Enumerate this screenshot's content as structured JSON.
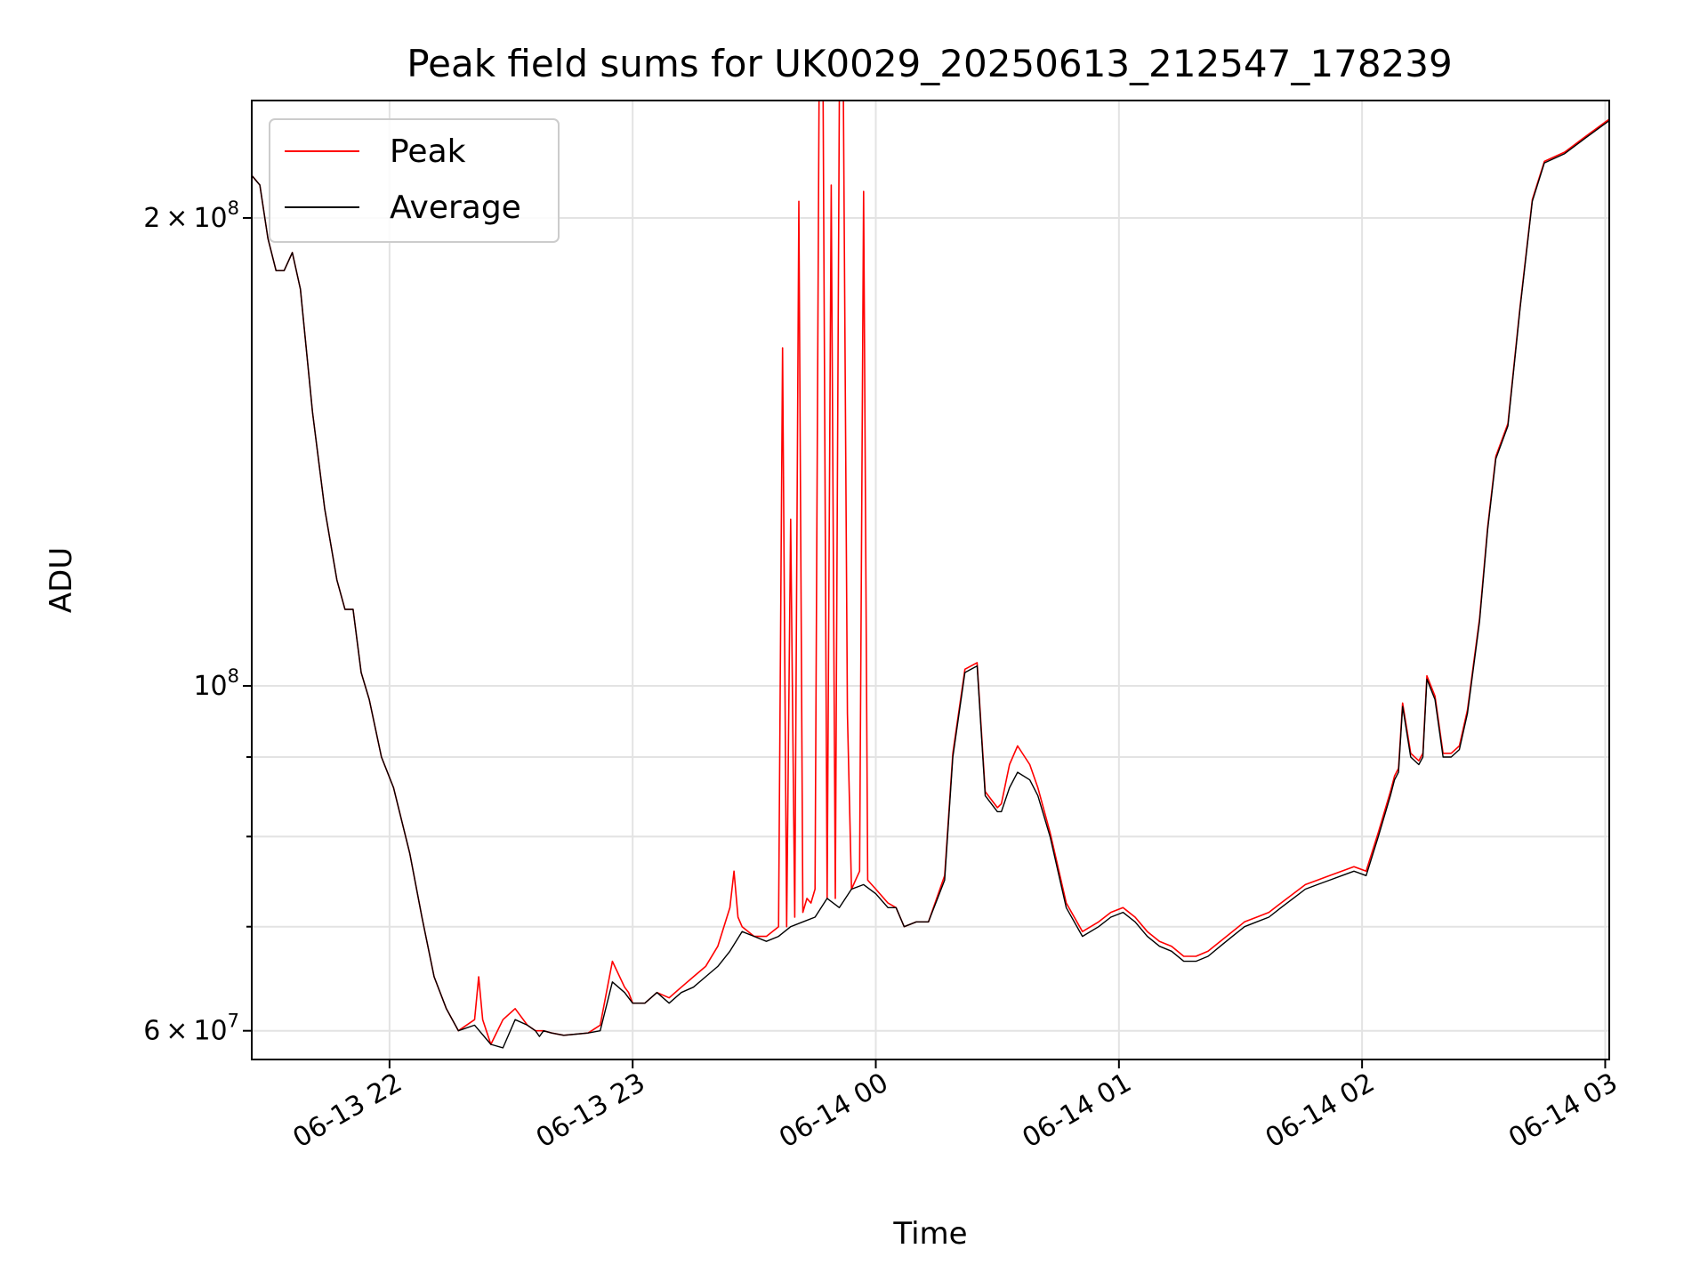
{
  "chart_data": {
    "type": "line",
    "title": "Peak field sums for UK0029_20250613_212547_178239",
    "xlabel": "Time",
    "ylabel": "ADU",
    "y_scale": "log",
    "grid": true,
    "legend_position": "upper-left",
    "x_range": [
      "2025-06-13 21:26",
      "2025-06-14 03:01"
    ],
    "ylim": [
      57500000,
      238000000
    ],
    "x_ticks": [
      {
        "x": "2025-06-13 22:00",
        "label": "06-13 22"
      },
      {
        "x": "2025-06-13 23:00",
        "label": "06-13 23"
      },
      {
        "x": "2025-06-14 00:00",
        "label": "06-14 00"
      },
      {
        "x": "2025-06-14 01:00",
        "label": "06-14 01"
      },
      {
        "x": "2025-06-14 02:00",
        "label": "06-14 02"
      },
      {
        "x": "2025-06-14 03:00",
        "label": "06-14 03"
      }
    ],
    "y_major_ticks": [
      {
        "y": 60000000,
        "label_base": "6",
        "label_exp": "7"
      },
      {
        "y": 100000000,
        "label_base": "",
        "label_exp": "8"
      },
      {
        "y": 200000000,
        "label_base": "2",
        "label_exp": "8"
      }
    ],
    "y_minor_ticks": [
      70000000,
      80000000,
      90000000
    ],
    "series": [
      {
        "name": "Average",
        "color": "#000000",
        "x": [
          "2025-06-13 21:26",
          "2025-06-13 21:28",
          "2025-06-13 21:30",
          "2025-06-13 21:32",
          "2025-06-13 21:34",
          "2025-06-13 21:36",
          "2025-06-13 21:38",
          "2025-06-13 21:41",
          "2025-06-13 21:44",
          "2025-06-13 21:47",
          "2025-06-13 21:49",
          "2025-06-13 21:51",
          "2025-06-13 21:53",
          "2025-06-13 21:55",
          "2025-06-13 21:58",
          "2025-06-13 22:01",
          "2025-06-13 22:05",
          "2025-06-13 22:08",
          "2025-06-13 22:11",
          "2025-06-13 22:14",
          "2025-06-13 22:17",
          "2025-06-13 22:21",
          "2025-06-13 22:25",
          "2025-06-13 22:28",
          "2025-06-13 22:31",
          "2025-06-13 22:34",
          "2025-06-13 22:36",
          "2025-06-13 22:37",
          "2025-06-13 22:38",
          "2025-06-13 22:40",
          "2025-06-13 22:43",
          "2025-06-13 22:46",
          "2025-06-13 22:49",
          "2025-06-13 22:52",
          "2025-06-13 22:55",
          "2025-06-13 22:58",
          "2025-06-13 22:59",
          "2025-06-13 23:00",
          "2025-06-13 23:03",
          "2025-06-13 23:06",
          "2025-06-13 23:09",
          "2025-06-13 23:12",
          "2025-06-13 23:15",
          "2025-06-13 23:18",
          "2025-06-13 23:21",
          "2025-06-13 23:24",
          "2025-06-13 23:27",
          "2025-06-13 23:30",
          "2025-06-13 23:33",
          "2025-06-13 23:36",
          "2025-06-13 23:39",
          "2025-06-13 23:42",
          "2025-06-13 23:45",
          "2025-06-13 23:48",
          "2025-06-13 23:51",
          "2025-06-13 23:54",
          "2025-06-13 23:57",
          "2025-06-14 00:00",
          "2025-06-14 00:03",
          "2025-06-14 00:05",
          "2025-06-14 00:07",
          "2025-06-14 00:10",
          "2025-06-14 00:13",
          "2025-06-14 00:17",
          "2025-06-14 00:19",
          "2025-06-14 00:22",
          "2025-06-14 00:25",
          "2025-06-14 00:27",
          "2025-06-14 00:30",
          "2025-06-14 00:31",
          "2025-06-14 00:33",
          "2025-06-14 00:35",
          "2025-06-14 00:38",
          "2025-06-14 00:40",
          "2025-06-14 00:43",
          "2025-06-14 00:47",
          "2025-06-14 00:51",
          "2025-06-14 00:55",
          "2025-06-14 00:58",
          "2025-06-14 01:01",
          "2025-06-14 01:04",
          "2025-06-14 01:07",
          "2025-06-14 01:10",
          "2025-06-14 01:13",
          "2025-06-14 01:16",
          "2025-06-14 01:19",
          "2025-06-14 01:22",
          "2025-06-14 01:25",
          "2025-06-14 01:28",
          "2025-06-14 01:31",
          "2025-06-14 01:34",
          "2025-06-14 01:37",
          "2025-06-14 01:40",
          "2025-06-14 01:43",
          "2025-06-14 01:46",
          "2025-06-14 01:49",
          "2025-06-14 01:52",
          "2025-06-14 01:55",
          "2025-06-14 01:58",
          "2025-06-14 02:01",
          "2025-06-14 02:04",
          "2025-06-14 02:07",
          "2025-06-14 02:08",
          "2025-06-14 02:09",
          "2025-06-14 02:10",
          "2025-06-14 02:12",
          "2025-06-14 02:14",
          "2025-06-14 02:15",
          "2025-06-14 02:16",
          "2025-06-14 02:18",
          "2025-06-14 02:20",
          "2025-06-14 02:22",
          "2025-06-14 02:24",
          "2025-06-14 02:26",
          "2025-06-14 02:29",
          "2025-06-14 02:31",
          "2025-06-14 02:33",
          "2025-06-14 02:36",
          "2025-06-14 02:39",
          "2025-06-14 02:42",
          "2025-06-14 02:45",
          "2025-06-14 02:50",
          "2025-06-14 02:55",
          "2025-06-14 03:00",
          "2025-06-14 03:01"
        ],
        "values": [
          213000000,
          210000000,
          194000000,
          185000000,
          185000000,
          190000000,
          180000000,
          150000000,
          130000000,
          117000000,
          112000000,
          112000000,
          102000000,
          98000000,
          90000000,
          86000000,
          78000000,
          71000000,
          65000000,
          62000000,
          60000000,
          60500000,
          58800000,
          58500000,
          61000000,
          60500000,
          60000000,
          59500000,
          60000000,
          59800000,
          59600000,
          59700000,
          59800000,
          60000000,
          64500000,
          63500000,
          63000000,
          62500000,
          62500000,
          63500000,
          62500000,
          63500000,
          64000000,
          65000000,
          66000000,
          67500000,
          69500000,
          69000000,
          68500000,
          69000000,
          70000000,
          70500000,
          71000000,
          73000000,
          72000000,
          74000000,
          74500000,
          73500000,
          72000000,
          72000000,
          70000000,
          70500000,
          70500000,
          75000000,
          90000000,
          102000000,
          103000000,
          85000000,
          83000000,
          83000000,
          86000000,
          88000000,
          87000000,
          85000000,
          80000000,
          72000000,
          69000000,
          70000000,
          71000000,
          71500000,
          70500000,
          69000000,
          68000000,
          67500000,
          66500000,
          66500000,
          67000000,
          68000000,
          69000000,
          70000000,
          70500000,
          71000000,
          72000000,
          73000000,
          74000000,
          74500000,
          75000000,
          75500000,
          76000000,
          75500000,
          80000000,
          85000000,
          87000000,
          88000000,
          97000000,
          90000000,
          89000000,
          90000000,
          101000000,
          98000000,
          90000000,
          90000000,
          91000000,
          96000000,
          110000000,
          126000000,
          140000000,
          147000000,
          175000000,
          205000000,
          217000000,
          220000000,
          225000000,
          230000000,
          231000000
        ]
      },
      {
        "name": "Peak",
        "color": "#ff0000",
        "x": [
          "2025-06-13 21:26",
          "2025-06-13 21:28",
          "2025-06-13 21:30",
          "2025-06-13 21:32",
          "2025-06-13 21:34",
          "2025-06-13 21:36",
          "2025-06-13 21:38",
          "2025-06-13 21:41",
          "2025-06-13 21:44",
          "2025-06-13 21:47",
          "2025-06-13 21:49",
          "2025-06-13 21:51",
          "2025-06-13 21:53",
          "2025-06-13 21:55",
          "2025-06-13 21:58",
          "2025-06-13 22:01",
          "2025-06-13 22:05",
          "2025-06-13 22:08",
          "2025-06-13 22:11",
          "2025-06-13 22:14",
          "2025-06-13 22:17",
          "2025-06-13 22:21",
          "2025-06-13 22:22",
          "2025-06-13 22:23",
          "2025-06-13 22:25",
          "2025-06-13 22:28",
          "2025-06-13 22:31",
          "2025-06-13 22:34",
          "2025-06-13 22:36",
          "2025-06-13 22:37",
          "2025-06-13 22:38",
          "2025-06-13 22:40",
          "2025-06-13 22:43",
          "2025-06-13 22:46",
          "2025-06-13 22:49",
          "2025-06-13 22:52",
          "2025-06-13 22:55",
          "2025-06-13 22:58",
          "2025-06-13 22:59",
          "2025-06-13 23:00",
          "2025-06-13 23:03",
          "2025-06-13 23:06",
          "2025-06-13 23:09",
          "2025-06-13 23:12",
          "2025-06-13 23:15",
          "2025-06-13 23:18",
          "2025-06-13 23:21",
          "2025-06-13 23:24",
          "2025-06-13 23:25",
          "2025-06-13 23:26",
          "2025-06-13 23:27",
          "2025-06-13 23:30",
          "2025-06-13 23:33",
          "2025-06-13 23:36",
          "2025-06-13 23:37",
          "2025-06-13 23:38",
          "2025-06-13 23:39",
          "2025-06-13 23:40",
          "2025-06-13 23:41",
          "2025-06-13 23:42",
          "2025-06-13 23:43",
          "2025-06-13 23:44",
          "2025-06-13 23:45",
          "2025-06-13 23:46",
          "2025-06-13 23:47",
          "2025-06-13 23:48",
          "2025-06-13 23:49",
          "2025-06-13 23:50",
          "2025-06-13 23:51",
          "2025-06-13 23:52",
          "2025-06-13 23:53",
          "2025-06-13 23:54",
          "2025-06-13 23:55",
          "2025-06-13 23:56",
          "2025-06-13 23:57",
          "2025-06-13 23:58",
          "2025-06-14 00:00",
          "2025-06-14 00:03",
          "2025-06-14 00:05",
          "2025-06-14 00:07",
          "2025-06-14 00:10",
          "2025-06-14 00:13",
          "2025-06-14 00:17",
          "2025-06-14 00:19",
          "2025-06-14 00:22",
          "2025-06-14 00:25",
          "2025-06-14 00:27",
          "2025-06-14 00:30",
          "2025-06-14 00:31",
          "2025-06-14 00:33",
          "2025-06-14 00:35",
          "2025-06-14 00:38",
          "2025-06-14 00:40",
          "2025-06-14 00:43",
          "2025-06-14 00:47",
          "2025-06-14 00:51",
          "2025-06-14 00:55",
          "2025-06-14 00:58",
          "2025-06-14 01:01",
          "2025-06-14 01:04",
          "2025-06-14 01:07",
          "2025-06-14 01:10",
          "2025-06-14 01:13",
          "2025-06-14 01:16",
          "2025-06-14 01:19",
          "2025-06-14 01:22",
          "2025-06-14 01:25",
          "2025-06-14 01:28",
          "2025-06-14 01:31",
          "2025-06-14 01:34",
          "2025-06-14 01:37",
          "2025-06-14 01:40",
          "2025-06-14 01:43",
          "2025-06-14 01:46",
          "2025-06-14 01:49",
          "2025-06-14 01:52",
          "2025-06-14 01:55",
          "2025-06-14 01:58",
          "2025-06-14 02:01",
          "2025-06-14 02:04",
          "2025-06-14 02:07",
          "2025-06-14 02:08",
          "2025-06-14 02:09",
          "2025-06-14 02:10",
          "2025-06-14 02:12",
          "2025-06-14 02:14",
          "2025-06-14 02:15",
          "2025-06-14 02:16",
          "2025-06-14 02:18",
          "2025-06-14 02:20",
          "2025-06-14 02:22",
          "2025-06-14 02:24",
          "2025-06-14 02:26",
          "2025-06-14 02:29",
          "2025-06-14 02:31",
          "2025-06-14 02:33",
          "2025-06-14 02:36",
          "2025-06-14 02:39",
          "2025-06-14 02:42",
          "2025-06-14 02:45",
          "2025-06-14 02:50",
          "2025-06-14 02:55",
          "2025-06-14 03:00",
          "2025-06-14 03:01"
        ],
        "values": [
          213000000,
          210000000,
          194000000,
          185000000,
          185000000,
          190000000,
          180000000,
          150000000,
          130000000,
          117000000,
          112000000,
          112000000,
          102000000,
          98000000,
          90000000,
          86000000,
          78000000,
          71000000,
          65000000,
          62000000,
          60000000,
          61000000,
          65000000,
          61000000,
          58800000,
          61000000,
          62000000,
          60500000,
          60000000,
          60000000,
          60000000,
          59800000,
          59600000,
          59700000,
          59800000,
          60500000,
          66500000,
          64000000,
          63500000,
          62500000,
          62500000,
          63500000,
          63000000,
          64000000,
          65000000,
          66000000,
          68000000,
          72000000,
          76000000,
          71000000,
          70000000,
          69000000,
          69000000,
          70000000,
          165000000,
          70000000,
          128000000,
          71000000,
          205000000,
          71500000,
          73000000,
          72500000,
          74000000,
          238000000,
          238000000,
          73000000,
          210000000,
          73000000,
          238000000,
          238000000,
          96000000,
          74000000,
          75000000,
          76000000,
          208000000,
          75000000,
          74000000,
          72500000,
          72000000,
          70000000,
          70500000,
          70500000,
          75500000,
          90500000,
          102500000,
          103500000,
          85500000,
          83500000,
          84000000,
          89000000,
          91500000,
          89000000,
          86000000,
          80500000,
          72500000,
          69500000,
          70500000,
          71500000,
          72000000,
          71000000,
          69500000,
          68500000,
          68000000,
          67000000,
          67000000,
          67500000,
          68500000,
          69500000,
          70500000,
          71000000,
          71500000,
          72500000,
          73500000,
          74500000,
          75000000,
          75500000,
          76000000,
          76500000,
          76000000,
          80500000,
          85500000,
          87500000,
          88500000,
          97500000,
          90500000,
          89500000,
          90500000,
          101500000,
          98500000,
          90500000,
          90500000,
          91500000,
          96500000,
          110500000,
          126500000,
          140500000,
          147500000,
          175500000,
          205500000,
          217500000,
          220500000,
          225500000,
          230500000,
          231500000
        ]
      }
    ]
  }
}
